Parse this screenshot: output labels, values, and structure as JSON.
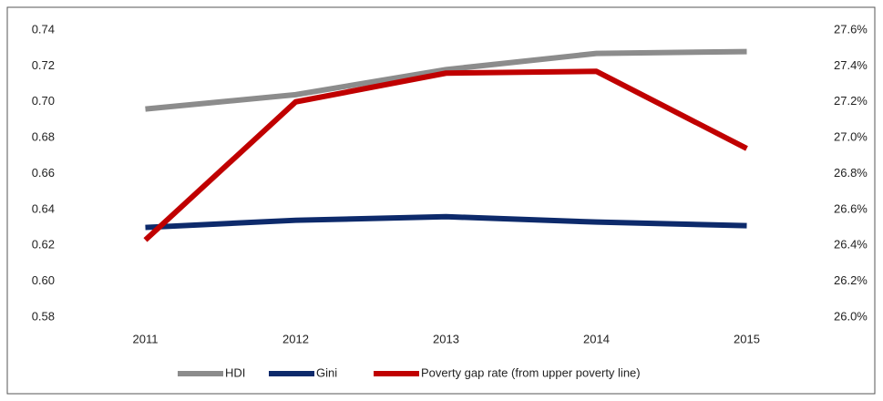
{
  "chart_data": {
    "type": "line",
    "categories": [
      "2011",
      "2012",
      "2013",
      "2014",
      "2015"
    ],
    "series": [
      {
        "name": "HDI",
        "color": "#8c8c8c",
        "values": [
          0.696,
          0.704,
          0.718,
          0.727,
          0.728
        ]
      },
      {
        "name": "Gini",
        "color": "#0d2a6b",
        "values": [
          0.63,
          0.634,
          0.636,
          0.633,
          0.631
        ]
      },
      {
        "name": "Poverty gap rate (from upper poverty line)",
        "color": "#c00000",
        "axis": "y2",
        "values": [
          26.43,
          27.2,
          27.36,
          27.37,
          26.94
        ]
      }
    ],
    "ylim": [
      0.58,
      0.74
    ],
    "yticks": [
      {
        "value": 0.58,
        "label": "0.58"
      },
      {
        "value": 0.6,
        "label": "0.60"
      },
      {
        "value": 0.62,
        "label": "0.62"
      },
      {
        "value": 0.64,
        "label": "0.64"
      },
      {
        "value": 0.66,
        "label": "0.66"
      },
      {
        "value": 0.68,
        "label": "0.68"
      },
      {
        "value": 0.7,
        "label": "0.70"
      },
      {
        "value": 0.72,
        "label": "0.72"
      },
      {
        "value": 0.74,
        "label": "0.74"
      }
    ],
    "y2lim": [
      26.0,
      27.6
    ],
    "y2ticks": [
      {
        "value": 26.0,
        "label": "26.0%"
      },
      {
        "value": 26.2,
        "label": "26.2%"
      },
      {
        "value": 26.4,
        "label": "26.4%"
      },
      {
        "value": 26.6,
        "label": "26.6%"
      },
      {
        "value": 26.8,
        "label": "26.8%"
      },
      {
        "value": 27.0,
        "label": "27.0%"
      },
      {
        "value": 27.2,
        "label": "27.2%"
      },
      {
        "value": 27.4,
        "label": "27.4%"
      },
      {
        "value": 27.6,
        "label": "27.6%"
      }
    ],
    "grid": false,
    "legend": "bottom"
  }
}
